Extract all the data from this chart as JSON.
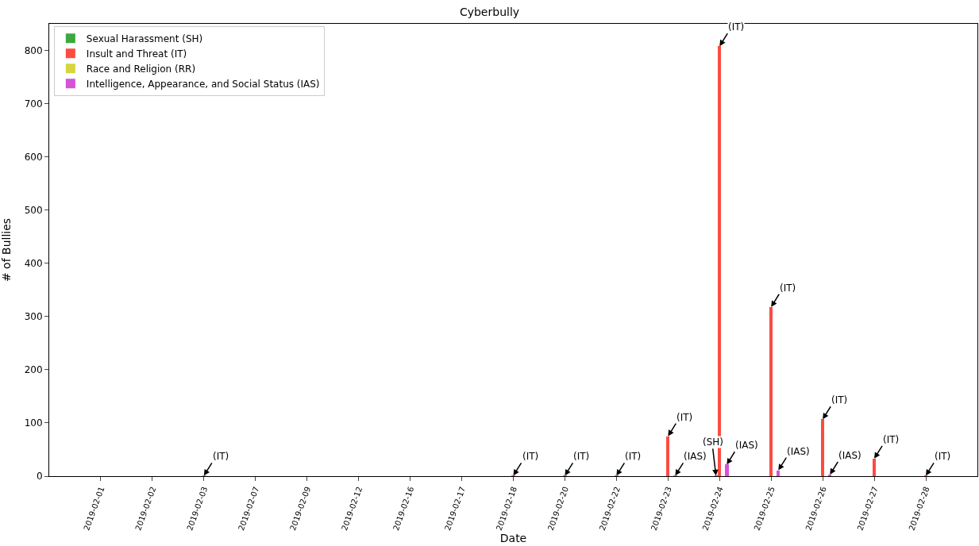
{
  "chart_data": {
    "type": "bar",
    "title": "Cyberbully",
    "xlabel": "Date",
    "ylabel": "# of Bullies",
    "categories": [
      "2019-02-01",
      "2019-02-02",
      "2019-02-03",
      "2019-02-07",
      "2019-02-09",
      "2019-02-12",
      "2019-02-16",
      "2019-02-17",
      "2019-02-18",
      "2019-02-20",
      "2019-02-22",
      "2019-02-23",
      "2019-02-24",
      "2019-02-25",
      "2019-02-26",
      "2019-02-27",
      "2019-02-28"
    ],
    "series": [
      {
        "name": "Sexual Harassment (SH)",
        "color": "#3ca93f",
        "values": [
          0,
          0,
          0,
          0,
          0,
          0,
          0,
          0,
          0,
          0,
          0,
          0,
          1,
          0,
          0,
          0,
          0
        ]
      },
      {
        "name": "Insult and Threat (IT)",
        "color": "#fb4c40",
        "values": [
          0,
          0,
          1,
          0,
          0,
          0,
          0,
          0,
          1,
          1,
          1,
          75,
          808,
          318,
          107,
          33,
          1
        ]
      },
      {
        "name": "Race and Religion (RR)",
        "color": "#d7d53d",
        "values": [
          0,
          0,
          0,
          0,
          0,
          0,
          0,
          0,
          0,
          0,
          0,
          0,
          0,
          0,
          0,
          0,
          0
        ]
      },
      {
        "name": "Intelligence, Appearance, and Social Status (IAS)",
        "color": "#d652d6",
        "values": [
          0,
          0,
          0,
          0,
          0,
          0,
          0,
          0,
          0,
          0,
          0,
          1,
          22,
          11,
          3,
          0,
          0
        ]
      }
    ],
    "annotations": [
      {
        "text": "(IT)",
        "x": "2019-02-03",
        "y": 1
      },
      {
        "text": "(IT)",
        "x": "2019-02-18",
        "y": 1
      },
      {
        "text": "(IT)",
        "x": "2019-02-20",
        "y": 1
      },
      {
        "text": "(IT)",
        "x": "2019-02-22",
        "y": 1
      },
      {
        "text": "(IT)",
        "x": "2019-02-23",
        "y": 75
      },
      {
        "text": "(IAS)",
        "x": "2019-02-23",
        "y": 1
      },
      {
        "text": "(SH)",
        "x": "2019-02-24",
        "y": 1
      },
      {
        "text": "(IT)",
        "x": "2019-02-24",
        "y": 808
      },
      {
        "text": "(IAS)",
        "x": "2019-02-24",
        "y": 22
      },
      {
        "text": "(IT)",
        "x": "2019-02-25",
        "y": 318
      },
      {
        "text": "(IAS)",
        "x": "2019-02-25",
        "y": 11
      },
      {
        "text": "(IT)",
        "x": "2019-02-26",
        "y": 107
      },
      {
        "text": "(IAS)",
        "x": "2019-02-26",
        "y": 3
      },
      {
        "text": "(IT)",
        "x": "2019-02-27",
        "y": 33
      },
      {
        "text": "(IT)",
        "x": "2019-02-28",
        "y": 1
      }
    ],
    "ylim": [
      0,
      850
    ],
    "yticks": [
      0,
      100,
      200,
      300,
      400,
      500,
      600,
      700,
      800
    ],
    "grid": false,
    "legend": "top left"
  }
}
